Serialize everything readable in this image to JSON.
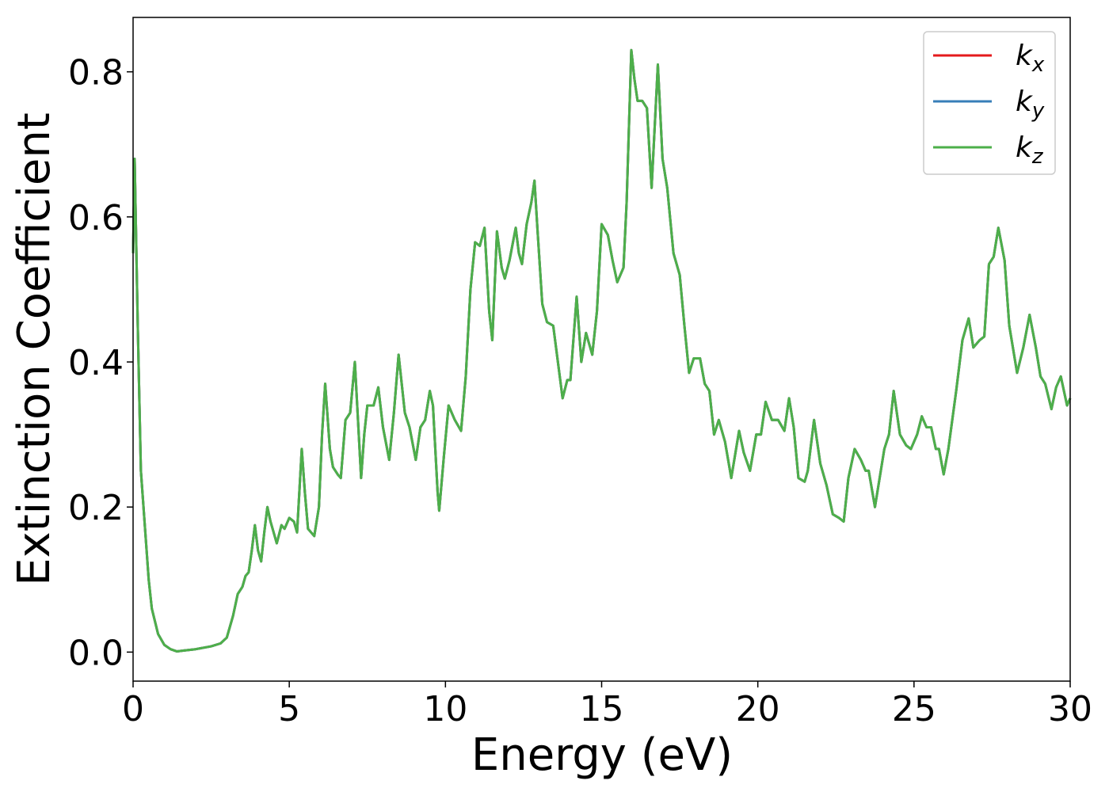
{
  "chart_data": {
    "type": "line",
    "xlabel": "Energy (eV)",
    "ylabel": "Extinction Coefficient",
    "xlim": [
      0,
      30
    ],
    "ylim": [
      -0.04,
      0.875
    ],
    "xticks": [
      0,
      5,
      10,
      15,
      20,
      25,
      30
    ],
    "yticks": [
      {
        "value": 0,
        "label": "0.0"
      },
      0.2,
      0.4,
      0.6,
      0.8
    ],
    "legend": "upper right",
    "x": [
      0.0,
      0.05,
      0.15,
      0.25,
      0.4,
      0.5,
      0.6,
      0.8,
      1.0,
      1.2,
      1.4,
      1.6,
      2.0,
      2.5,
      2.8,
      3.0,
      3.2,
      3.35,
      3.5,
      3.6,
      3.7,
      3.8,
      3.9,
      4.0,
      4.1,
      4.2,
      4.3,
      4.4,
      4.6,
      4.75,
      4.85,
      5.0,
      5.15,
      5.25,
      5.4,
      5.5,
      5.6,
      5.8,
      5.95,
      6.05,
      6.15,
      6.3,
      6.4,
      6.55,
      6.65,
      6.8,
      6.95,
      7.1,
      7.2,
      7.3,
      7.4,
      7.5,
      7.7,
      7.85,
      8.0,
      8.2,
      8.35,
      8.5,
      8.7,
      8.85,
      9.05,
      9.2,
      9.35,
      9.5,
      9.6,
      9.75,
      9.8,
      9.95,
      10.1,
      10.3,
      10.5,
      10.65,
      10.8,
      10.95,
      11.1,
      11.25,
      11.4,
      11.5,
      11.6,
      11.65,
      11.8,
      11.9,
      12.05,
      12.25,
      12.35,
      12.45,
      12.6,
      12.75,
      12.85,
      12.95,
      13.1,
      13.25,
      13.45,
      13.6,
      13.75,
      13.9,
      14.0,
      14.2,
      14.35,
      14.5,
      14.7,
      14.85,
      15.0,
      15.2,
      15.35,
      15.5,
      15.7,
      15.8,
      15.95,
      16.05,
      16.15,
      16.3,
      16.45,
      16.6,
      16.8,
      16.95,
      17.1,
      17.3,
      17.5,
      17.65,
      17.8,
      17.95,
      18.15,
      18.3,
      18.45,
      18.6,
      18.75,
      18.95,
      19.15,
      19.4,
      19.55,
      19.75,
      19.95,
      20.1,
      20.25,
      20.45,
      20.65,
      20.85,
      21.0,
      21.15,
      21.3,
      21.5,
      21.6,
      21.8,
      22.0,
      22.2,
      22.4,
      22.6,
      22.75,
      22.9,
      23.1,
      23.3,
      23.45,
      23.55,
      23.75,
      23.9,
      24.05,
      24.2,
      24.35,
      24.55,
      24.75,
      24.9,
      25.1,
      25.25,
      25.4,
      25.55,
      25.7,
      25.8,
      25.95,
      26.1,
      26.35,
      26.55,
      26.75,
      26.9,
      27.1,
      27.25,
      27.4,
      27.55,
      27.7,
      27.9,
      28.05,
      28.3,
      28.5,
      28.7,
      28.9,
      29.05,
      29.2,
      29.4,
      29.55,
      29.7,
      29.9,
      30.0
    ],
    "series": [
      {
        "name": "kx",
        "color": "#e41a1c",
        "values": [
          0.55,
          0.68,
          0.45,
          0.25,
          0.16,
          0.1,
          0.06,
          0.025,
          0.01,
          0.004,
          0.001,
          0.002,
          0.004,
          0.008,
          0.012,
          0.02,
          0.05,
          0.08,
          0.09,
          0.105,
          0.11,
          0.14,
          0.175,
          0.14,
          0.125,
          0.165,
          0.2,
          0.18,
          0.15,
          0.175,
          0.17,
          0.185,
          0.18,
          0.165,
          0.28,
          0.22,
          0.17,
          0.16,
          0.2,
          0.3,
          0.37,
          0.28,
          0.255,
          0.245,
          0.24,
          0.32,
          0.33,
          0.4,
          0.32,
          0.24,
          0.3,
          0.34,
          0.34,
          0.365,
          0.31,
          0.265,
          0.33,
          0.41,
          0.33,
          0.31,
          0.265,
          0.31,
          0.32,
          0.36,
          0.34,
          0.22,
          0.195,
          0.27,
          0.34,
          0.32,
          0.305,
          0.38,
          0.5,
          0.565,
          0.56,
          0.585,
          0.47,
          0.43,
          0.53,
          0.58,
          0.53,
          0.515,
          0.54,
          0.585,
          0.55,
          0.535,
          0.59,
          0.62,
          0.65,
          0.58,
          0.48,
          0.455,
          0.45,
          0.4,
          0.35,
          0.375,
          0.375,
          0.49,
          0.4,
          0.44,
          0.41,
          0.47,
          0.59,
          0.575,
          0.54,
          0.51,
          0.53,
          0.62,
          0.83,
          0.79,
          0.76,
          0.76,
          0.75,
          0.64,
          0.81,
          0.68,
          0.64,
          0.55,
          0.52,
          0.45,
          0.385,
          0.405,
          0.405,
          0.37,
          0.36,
          0.3,
          0.32,
          0.29,
          0.24,
          0.305,
          0.275,
          0.25,
          0.3,
          0.3,
          0.345,
          0.32,
          0.32,
          0.305,
          0.35,
          0.31,
          0.24,
          0.235,
          0.25,
          0.32,
          0.26,
          0.23,
          0.19,
          0.185,
          0.18,
          0.24,
          0.28,
          0.265,
          0.25,
          0.25,
          0.2,
          0.24,
          0.28,
          0.3,
          0.36,
          0.3,
          0.285,
          0.28,
          0.3,
          0.325,
          0.31,
          0.31,
          0.28,
          0.28,
          0.245,
          0.28,
          0.36,
          0.43,
          0.46,
          0.42,
          0.43,
          0.435,
          0.535,
          0.545,
          0.585,
          0.54,
          0.45,
          0.385,
          0.42,
          0.465,
          0.42,
          0.38,
          0.37,
          0.335,
          0.365,
          0.38,
          0.34,
          0.35
        ]
      },
      {
        "name": "ky",
        "color": "#377eb8",
        "values": [
          0.55,
          0.68,
          0.45,
          0.25,
          0.16,
          0.1,
          0.06,
          0.025,
          0.01,
          0.004,
          0.001,
          0.002,
          0.004,
          0.008,
          0.012,
          0.02,
          0.05,
          0.08,
          0.09,
          0.105,
          0.11,
          0.14,
          0.175,
          0.14,
          0.125,
          0.165,
          0.2,
          0.18,
          0.15,
          0.175,
          0.17,
          0.185,
          0.18,
          0.165,
          0.28,
          0.22,
          0.17,
          0.16,
          0.2,
          0.3,
          0.37,
          0.28,
          0.255,
          0.245,
          0.24,
          0.32,
          0.33,
          0.4,
          0.32,
          0.24,
          0.3,
          0.34,
          0.34,
          0.365,
          0.31,
          0.265,
          0.33,
          0.41,
          0.33,
          0.31,
          0.265,
          0.31,
          0.32,
          0.36,
          0.34,
          0.22,
          0.195,
          0.27,
          0.34,
          0.32,
          0.305,
          0.38,
          0.5,
          0.565,
          0.56,
          0.585,
          0.47,
          0.43,
          0.53,
          0.58,
          0.53,
          0.515,
          0.54,
          0.585,
          0.55,
          0.535,
          0.59,
          0.62,
          0.65,
          0.58,
          0.48,
          0.455,
          0.45,
          0.4,
          0.35,
          0.375,
          0.375,
          0.49,
          0.4,
          0.44,
          0.41,
          0.47,
          0.59,
          0.575,
          0.54,
          0.51,
          0.53,
          0.62,
          0.83,
          0.79,
          0.76,
          0.76,
          0.75,
          0.64,
          0.81,
          0.68,
          0.64,
          0.55,
          0.52,
          0.45,
          0.385,
          0.405,
          0.405,
          0.37,
          0.36,
          0.3,
          0.32,
          0.29,
          0.24,
          0.305,
          0.275,
          0.25,
          0.3,
          0.3,
          0.345,
          0.32,
          0.32,
          0.305,
          0.35,
          0.31,
          0.24,
          0.235,
          0.25,
          0.32,
          0.26,
          0.23,
          0.19,
          0.185,
          0.18,
          0.24,
          0.28,
          0.265,
          0.25,
          0.25,
          0.2,
          0.24,
          0.28,
          0.3,
          0.36,
          0.3,
          0.285,
          0.28,
          0.3,
          0.325,
          0.31,
          0.31,
          0.28,
          0.28,
          0.245,
          0.28,
          0.36,
          0.43,
          0.46,
          0.42,
          0.43,
          0.435,
          0.535,
          0.545,
          0.585,
          0.54,
          0.45,
          0.385,
          0.42,
          0.465,
          0.42,
          0.38,
          0.37,
          0.335,
          0.365,
          0.38,
          0.34,
          0.35
        ]
      },
      {
        "name": "kz",
        "color": "#4daf4a",
        "values": [
          0.55,
          0.68,
          0.45,
          0.25,
          0.16,
          0.1,
          0.06,
          0.025,
          0.01,
          0.004,
          0.001,
          0.002,
          0.004,
          0.008,
          0.012,
          0.02,
          0.05,
          0.08,
          0.09,
          0.105,
          0.11,
          0.14,
          0.175,
          0.14,
          0.125,
          0.165,
          0.2,
          0.18,
          0.15,
          0.175,
          0.17,
          0.185,
          0.18,
          0.165,
          0.28,
          0.22,
          0.17,
          0.16,
          0.2,
          0.3,
          0.37,
          0.28,
          0.255,
          0.245,
          0.24,
          0.32,
          0.33,
          0.4,
          0.32,
          0.24,
          0.3,
          0.34,
          0.34,
          0.365,
          0.31,
          0.265,
          0.33,
          0.41,
          0.33,
          0.31,
          0.265,
          0.31,
          0.32,
          0.36,
          0.34,
          0.22,
          0.195,
          0.27,
          0.34,
          0.32,
          0.305,
          0.38,
          0.5,
          0.565,
          0.56,
          0.585,
          0.47,
          0.43,
          0.53,
          0.58,
          0.53,
          0.515,
          0.54,
          0.585,
          0.55,
          0.535,
          0.59,
          0.62,
          0.65,
          0.58,
          0.48,
          0.455,
          0.45,
          0.4,
          0.35,
          0.375,
          0.375,
          0.49,
          0.4,
          0.44,
          0.41,
          0.47,
          0.59,
          0.575,
          0.54,
          0.51,
          0.53,
          0.62,
          0.83,
          0.79,
          0.76,
          0.76,
          0.75,
          0.64,
          0.81,
          0.68,
          0.64,
          0.55,
          0.52,
          0.45,
          0.385,
          0.405,
          0.405,
          0.37,
          0.36,
          0.3,
          0.32,
          0.29,
          0.24,
          0.305,
          0.275,
          0.25,
          0.3,
          0.3,
          0.345,
          0.32,
          0.32,
          0.305,
          0.35,
          0.31,
          0.24,
          0.235,
          0.25,
          0.32,
          0.26,
          0.23,
          0.19,
          0.185,
          0.18,
          0.24,
          0.28,
          0.265,
          0.25,
          0.25,
          0.2,
          0.24,
          0.28,
          0.3,
          0.36,
          0.3,
          0.285,
          0.28,
          0.3,
          0.325,
          0.31,
          0.31,
          0.28,
          0.28,
          0.245,
          0.28,
          0.36,
          0.43,
          0.46,
          0.42,
          0.43,
          0.435,
          0.535,
          0.545,
          0.585,
          0.54,
          0.45,
          0.385,
          0.42,
          0.465,
          0.42,
          0.38,
          0.37,
          0.335,
          0.365,
          0.38,
          0.34,
          0.35
        ]
      }
    ]
  }
}
